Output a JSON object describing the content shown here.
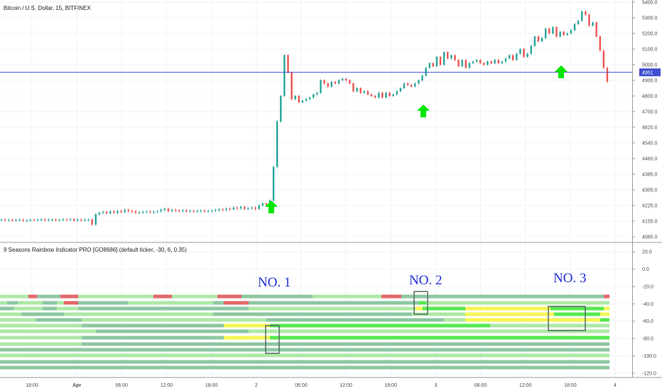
{
  "price_pane": {
    "title": "Bitcoin / U.S. Dollar, 15, BITFINEX",
    "price_tag": "4951",
    "ylim": [
      4060,
      5420
    ]
  },
  "indicator_pane": {
    "title": "9 Seasons Rainbow Indicator PRO [GO8686] (default ticker, -30, 6, 0.35)",
    "ylim": [
      -125,
      30
    ]
  },
  "annotations": {
    "no1": "NO. 1",
    "no2": "NO. 2",
    "no3": "NO. 3"
  },
  "colors": {
    "up": "#26a69a",
    "down": "#ef5350",
    "arrow": "#00e600",
    "hline": "#3f4fd0",
    "band_light": "#aee8a6",
    "band_teal": "#8cc7a2",
    "band_green": "#55e84f",
    "band_yellow": "#f5f553",
    "band_red": "#e46868"
  },
  "chart_data": [
    {
      "type": "line",
      "title": "Bitcoin / U.S. Dollar, 15, BITFINEX",
      "xlabel": "",
      "ylabel": "",
      "x_tick_labels": [
        "18:00",
        "Apr",
        "06:00",
        "12:00",
        "18:00",
        "2",
        "06:00",
        "12:00",
        "18:00",
        "3",
        "06:00",
        "12:00",
        "18:00",
        "4"
      ],
      "y_tick_labels": [
        "5400.0",
        "5300.0",
        "5200.0",
        "5100.0",
        "5000.0",
        "4900.0",
        "4800.0",
        "4700.0",
        "4620.0",
        "4540.0",
        "4460.0",
        "4385.0",
        "4305.0",
        "4225.0",
        "4155.0",
        "4085.0"
      ],
      "series": [
        {
          "values": [
            4161,
            4159,
            4160,
            4158,
            4159,
            4160,
            4157,
            4158,
            4160,
            4159,
            4161,
            4162,
            4160,
            4160,
            4161,
            4159,
            4160,
            4162,
            4161,
            4163,
            4158,
            4161,
            4159,
            4160,
            4161,
            4140,
            4185,
            4192,
            4196,
            4190,
            4198,
            4193,
            4200,
            4196,
            4205,
            4200,
            4198,
            4192,
            4194,
            4196,
            4198,
            4195,
            4197,
            4199,
            4205,
            4210,
            4200,
            4205,
            4202,
            4200,
            4203,
            4199,
            4201,
            4198,
            4200,
            4202,
            4199,
            4200,
            4202,
            4205,
            4207,
            4205,
            4210,
            4208,
            4215,
            4212,
            4218,
            4210,
            4212,
            4215,
            4210,
            4225,
            4235,
            4230,
            4250,
            4420,
            4650,
            4800,
            5060,
            4950,
            4780,
            4800,
            4760,
            4770,
            4780,
            4790,
            4810,
            4820,
            4900,
            4880,
            4860,
            4890,
            4880,
            4900,
            4910,
            4900,
            4880,
            4830,
            4850,
            4820,
            4830,
            4810,
            4800,
            4790,
            4820,
            4790,
            4820,
            4800,
            4810,
            4830,
            4850,
            4880,
            4870,
            4860,
            4880,
            4900,
            4930,
            4980,
            5010,
            4990,
            5050,
            5000,
            5080,
            5040,
            5060,
            5030,
            4990,
            5030,
            4980,
            5010,
            5020,
            5030,
            5010,
            5000,
            5020,
            5010,
            5030,
            5010,
            5020,
            5040,
            5060,
            5030,
            5070,
            5100,
            5050,
            5070,
            5120,
            5180,
            5150,
            5170,
            5230,
            5200,
            5240,
            5180,
            5210,
            5190,
            5200,
            5220,
            5260,
            5280,
            5340,
            5320,
            5250,
            5270,
            5180,
            5090,
            4980,
            4890
          ],
          "annotations": [
            "up arrow near 2 (~4220)",
            "up arrow near 18:00 on day 2 (~4810)",
            "up arrow near 15:00 on day 3 (~5020)"
          ],
          "horizontal_line": 4951
        }
      ]
    },
    {
      "type": "heatmap",
      "title": "9 Seasons Rainbow Indicator PRO [GO8686] (default ticker, -30, 6, 0.35)",
      "xlabel": "",
      "ylabel": "",
      "y_tick_labels": [
        "20.0",
        "0.0",
        "-20.0",
        "-40.0",
        "-60.0",
        "-80.0",
        "-100.0",
        "-120.0"
      ],
      "rows": 12,
      "row_levels": [
        -30,
        -37,
        -44,
        -51,
        -58,
        -65,
        -72,
        -79,
        -86,
        -93,
        -100,
        -107,
        -114
      ],
      "highlight_boxes": [
        "NO. 1",
        "NO. 2",
        "NO. 3"
      ]
    }
  ]
}
